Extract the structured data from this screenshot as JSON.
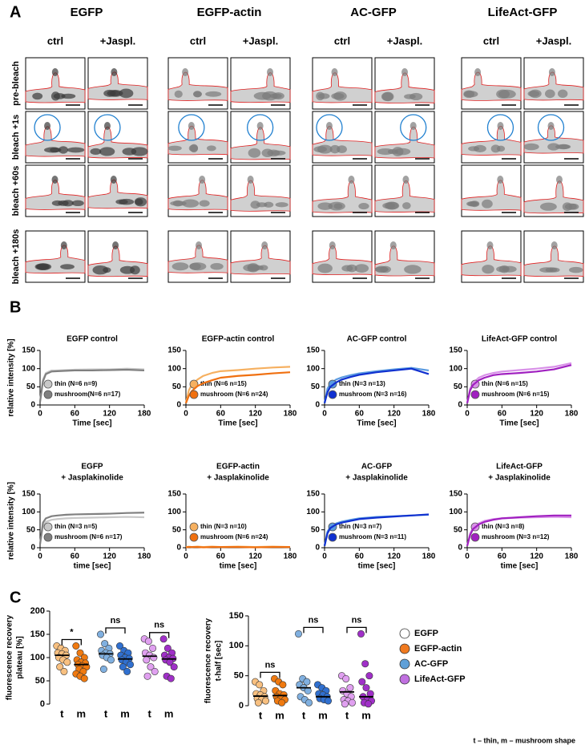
{
  "panel_labels": [
    "A",
    "B",
    "C"
  ],
  "panel_a": {
    "groups": [
      {
        "title": "EGFP",
        "columns": [
          "ctrl",
          "+Jaspl."
        ]
      },
      {
        "title": "EGFP-actin",
        "columns": [
          "ctrl",
          "+Jaspl."
        ]
      },
      {
        "title": "AC-GFP",
        "columns": [
          "ctrl",
          "+Jaspl."
        ]
      },
      {
        "title": "LifeAct-GFP",
        "columns": [
          "ctrl",
          "+Jaspl."
        ]
      }
    ],
    "rows": [
      "pre-bleach",
      "bleach +1s",
      "bleach +60s",
      "bleach +180s"
    ]
  },
  "chart_data": [
    {
      "type": "line",
      "title": "EGFP control",
      "xlabel": "Time [sec]",
      "ylabel": "relative intensity [%]",
      "x": [
        0,
        5,
        10,
        20,
        30,
        45,
        60,
        90,
        120,
        150,
        180
      ],
      "xlim": [
        0,
        180
      ],
      "ylim": [
        0,
        150
      ],
      "xticks": [
        0,
        60,
        120,
        180
      ],
      "yticks": [
        0,
        50,
        100,
        150
      ],
      "series": [
        {
          "name": "thin (N=6 n=9)",
          "color": "#c8c8c8",
          "values": [
            10,
            70,
            88,
            95,
            95,
            96,
            97,
            98,
            98,
            100,
            98
          ]
        },
        {
          "name": "mushroom(N=6 n=17)",
          "color": "#808080",
          "values": [
            8,
            65,
            85,
            92,
            93,
            94,
            95,
            95,
            96,
            97,
            95
          ]
        }
      ]
    },
    {
      "type": "line",
      "title": "EGFP-actin control",
      "xlabel": "Time [sec]",
      "x": [
        0,
        5,
        10,
        20,
        30,
        45,
        60,
        90,
        120,
        150,
        180
      ],
      "xlim": [
        0,
        180
      ],
      "ylim": [
        0,
        150
      ],
      "xticks": [
        0,
        60,
        120,
        180
      ],
      "yticks": [
        0,
        50,
        100,
        150
      ],
      "series": [
        {
          "name": "thin (N=6 n=15)",
          "color": "#f6b060",
          "values": [
            5,
            40,
            55,
            70,
            80,
            88,
            93,
            96,
            100,
            103,
            105
          ]
        },
        {
          "name": "mushroom (N=6 n=24)",
          "color": "#f07010",
          "values": [
            5,
            25,
            38,
            52,
            60,
            68,
            75,
            80,
            83,
            87,
            90
          ]
        }
      ]
    },
    {
      "type": "line",
      "title": "AC-GFP control",
      "xlabel": "Time [sec]",
      "x": [
        0,
        5,
        10,
        20,
        30,
        45,
        60,
        90,
        120,
        150,
        180
      ],
      "xlim": [
        0,
        180
      ],
      "ylim": [
        0,
        150
      ],
      "xticks": [
        0,
        60,
        120,
        180
      ],
      "yticks": [
        0,
        50,
        100,
        150
      ],
      "series": [
        {
          "name": "thin (N=3 n=13)",
          "color": "#5b9be0",
          "values": [
            5,
            45,
            58,
            70,
            76,
            82,
            87,
            93,
            98,
            102,
            95
          ]
        },
        {
          "name": "mushroom (N=3 n=16)",
          "color": "#1030d0",
          "values": [
            5,
            35,
            50,
            62,
            70,
            77,
            83,
            90,
            95,
            100,
            85
          ]
        }
      ]
    },
    {
      "type": "line",
      "title": "LifeAct-GFP control",
      "xlabel": "Time [sec]",
      "x": [
        0,
        5,
        10,
        20,
        30,
        45,
        60,
        90,
        120,
        150,
        180
      ],
      "xlim": [
        0,
        180
      ],
      "ylim": [
        0,
        150
      ],
      "xticks": [
        0,
        60,
        120,
        180
      ],
      "yticks": [
        0,
        50,
        100,
        150
      ],
      "series": [
        {
          "name": "thin (N=6 n=15)",
          "color": "#d890e8",
          "values": [
            5,
            45,
            60,
            75,
            82,
            88,
            92,
            96,
            100,
            105,
            115
          ]
        },
        {
          "name": "mushroom (N=6 n=15)",
          "color": "#a020c0",
          "values": [
            5,
            40,
            55,
            68,
            75,
            82,
            85,
            88,
            92,
            98,
            110
          ]
        }
      ]
    },
    {
      "type": "line",
      "title": "EGFP",
      "subtitle": "+ Jasplakinolide",
      "xlabel": "time [sec]",
      "ylabel": "relative intensity [%]",
      "x": [
        0,
        5,
        10,
        20,
        30,
        45,
        60,
        90,
        120,
        150,
        180
      ],
      "xlim": [
        0,
        180
      ],
      "ylim": [
        0,
        150
      ],
      "xticks": [
        0,
        60,
        120,
        180
      ],
      "yticks": [
        0,
        50,
        100,
        150
      ],
      "series": [
        {
          "name": "thin (N=3 n=5)",
          "color": "#c8c8c8",
          "values": [
            10,
            60,
            72,
            78,
            80,
            82,
            83,
            84,
            85,
            86,
            85
          ]
        },
        {
          "name": "mushroom (N=6 n=17)",
          "color": "#808080",
          "values": [
            10,
            70,
            82,
            88,
            90,
            92,
            93,
            94,
            95,
            97,
            98
          ]
        }
      ]
    },
    {
      "type": "line",
      "title": "EGFP-actin",
      "subtitle": "+ Jasplakinolide",
      "xlabel": "time [sec]",
      "x": [
        0,
        5,
        10,
        20,
        30,
        45,
        60,
        90,
        120,
        150,
        180
      ],
      "xlim": [
        0,
        180
      ],
      "ylim": [
        0,
        150
      ],
      "xticks": [
        0,
        60,
        120,
        180
      ],
      "yticks": [
        0,
        50,
        100,
        150
      ],
      "series": [
        {
          "name": "thin (N=3 n=10)",
          "color": "#f6b060",
          "values": [
            2,
            3,
            2,
            3,
            2,
            3,
            2,
            3,
            2,
            3,
            2
          ]
        },
        {
          "name": "mushroom (N=6 n=24)",
          "color": "#f07010",
          "values": [
            1,
            2,
            2,
            2,
            1,
            2,
            2,
            2,
            1,
            2,
            2
          ]
        }
      ]
    },
    {
      "type": "line",
      "title": "AC-GFP",
      "subtitle": "+ Jasplakinolide",
      "xlabel": "time [sec]",
      "x": [
        0,
        5,
        10,
        20,
        30,
        45,
        60,
        90,
        120,
        150,
        180
      ],
      "xlim": [
        0,
        180
      ],
      "ylim": [
        0,
        150
      ],
      "xticks": [
        0,
        60,
        120,
        180
      ],
      "yticks": [
        0,
        50,
        100,
        150
      ],
      "series": [
        {
          "name": "thin (N=3 n=7)",
          "color": "#5b9be0",
          "values": [
            5,
            45,
            58,
            68,
            73,
            78,
            82,
            86,
            88,
            90,
            92
          ]
        },
        {
          "name": "mushroom (N=3 n=11)",
          "color": "#1030d0",
          "values": [
            5,
            40,
            55,
            65,
            70,
            75,
            80,
            84,
            87,
            90,
            93
          ]
        }
      ]
    },
    {
      "type": "line",
      "title": "LifeAct-GFP",
      "subtitle": "+  Jasplakinolide",
      "xlabel": "time [sec]",
      "x": [
        0,
        5,
        10,
        20,
        30,
        45,
        60,
        90,
        120,
        150,
        180
      ],
      "xlim": [
        0,
        180
      ],
      "ylim": [
        0,
        150
      ],
      "xticks": [
        0,
        60,
        120,
        180
      ],
      "yticks": [
        0,
        50,
        100,
        150
      ],
      "series": [
        {
          "name": "thin (N=3 n=8)",
          "color": "#d890e8",
          "values": [
            5,
            40,
            55,
            68,
            75,
            80,
            82,
            84,
            85,
            86,
            85
          ]
        },
        {
          "name": "mushroom (N=3 n=12)",
          "color": "#a020c0",
          "values": [
            5,
            35,
            52,
            65,
            72,
            78,
            82,
            85,
            88,
            90,
            90
          ]
        }
      ]
    },
    {
      "type": "dot",
      "ylabel": [
        "fluorescence recovery",
        "plateau [%]"
      ],
      "ylim": [
        0,
        200
      ],
      "yticks": [
        0,
        50,
        100,
        150,
        200
      ],
      "categories": [
        "t",
        "m",
        "t",
        "m",
        "t",
        "m"
      ],
      "colors": [
        "#f8c080",
        "#f07a10",
        "#80b0e0",
        "#3070d0",
        "#e0a0f0",
        "#a030c8"
      ],
      "points": [
        [
          125,
          120,
          115,
          110,
          108,
          105,
          100,
          95,
          90,
          80,
          70
        ],
        [
          125,
          110,
          100,
          95,
          90,
          88,
          85,
          82,
          80,
          75,
          70,
          65,
          60,
          55
        ],
        [
          150,
          130,
          120,
          115,
          110,
          108,
          105,
          100,
          95,
          75
        ],
        [
          125,
          115,
          110,
          105,
          100,
          98,
          95,
          90,
          85,
          80,
          70
        ],
        [
          140,
          135,
          120,
          110,
          105,
          100,
          95,
          80,
          70,
          60
        ],
        [
          140,
          120,
          110,
          105,
          100,
          98,
          95,
          90,
          80,
          60,
          55
        ]
      ],
      "medians": [
        105,
        85,
        108,
        97,
        103,
        97
      ],
      "comparisons": [
        "*",
        "ns",
        "ns"
      ]
    },
    {
      "type": "dot",
      "ylabel": [
        "fluorescence recovery",
        "t-half [sec]"
      ],
      "ylim": [
        0,
        150
      ],
      "yticks": [
        0,
        50,
        100,
        150
      ],
      "categories": [
        "t",
        "m",
        "t",
        "m",
        "t",
        "m"
      ],
      "colors": [
        "#f8c080",
        "#f07a10",
        "#80b0e0",
        "#3070d0",
        "#e0a0f0",
        "#a030c8"
      ],
      "points": [
        [
          40,
          35,
          25,
          20,
          18,
          15,
          12,
          10,
          8,
          5
        ],
        [
          45,
          40,
          35,
          25,
          20,
          18,
          15,
          12,
          10,
          8,
          5
        ],
        [
          120,
          45,
          40,
          35,
          30,
          25,
          15,
          10,
          5
        ],
        [
          35,
          30,
          25,
          20,
          18,
          15,
          12,
          10,
          8
        ],
        [
          50,
          45,
          30,
          25,
          20,
          15,
          10,
          8,
          5,
          3
        ],
        [
          120,
          70,
          50,
          40,
          30,
          20,
          15,
          10,
          8,
          5,
          3
        ]
      ],
      "medians": [
        16,
        17,
        30,
        15,
        23,
        15
      ],
      "comparisons": [
        "ns",
        "ns",
        "ns"
      ],
      "legend": [
        {
          "name": "EGFP",
          "color": "#ffffff"
        },
        {
          "name": "EGFP-actin",
          "color": "#f07a20"
        },
        {
          "name": "AC-GFP",
          "color": "#60a0d8"
        },
        {
          "name": "LifeAct-GFP",
          "color": "#c070e0"
        }
      ]
    }
  ],
  "footnote": "t – thin, m – mushroom shape"
}
